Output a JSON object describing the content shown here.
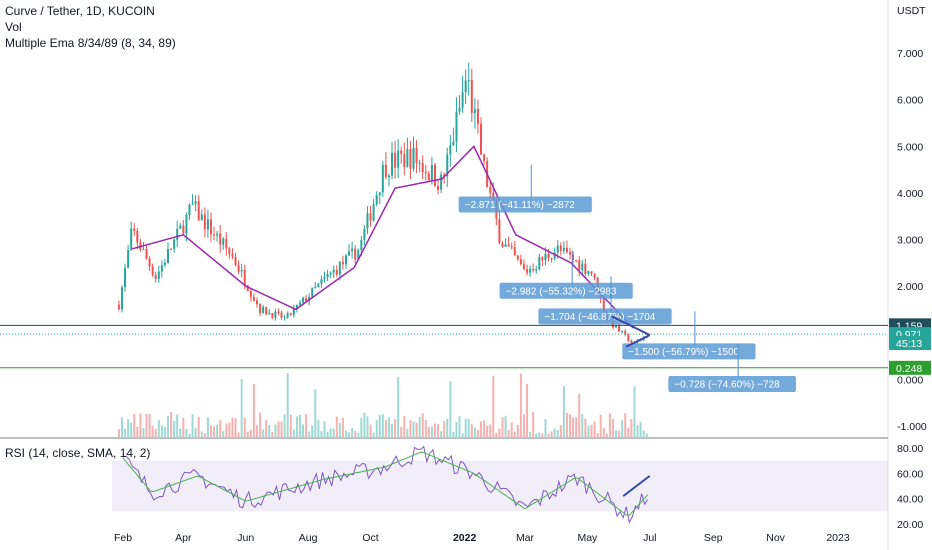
{
  "header": {
    "symbol_line": "Curve / Tether, 1D, KUCOIN",
    "vol_label": "Vol",
    "ema_label": "Multiple Ema 8/34/89 (8, 34, 89)",
    "rsi_label": "RSI (14, close, SMA, 14, 2)"
  },
  "chart_data": [
    {
      "type": "candlestick",
      "title": "Curve / Tether, 1D, KUCOIN",
      "currency_label": "USDT",
      "x_ticks": [
        "Feb",
        "Apr",
        "Jun",
        "Aug",
        "Oct",
        "2022",
        "Mar",
        "May",
        "Jul",
        "Sep",
        "Nov",
        "2023"
      ],
      "y_ticks": [
        "7.000",
        "6.000",
        "5.000",
        "4.000",
        "3.000",
        "2.000",
        "1.000",
        "0.000",
        "-1.000"
      ],
      "ylim": [
        -1.2,
        7.6
      ],
      "close_path_key_points": [
        {
          "date": "2021-01-28",
          "value": 1.6
        },
        {
          "date": "2021-02-10",
          "value": 3.2
        },
        {
          "date": "2021-03-05",
          "value": 2.2
        },
        {
          "date": "2021-04-10",
          "value": 3.7
        },
        {
          "date": "2021-05-20",
          "value": 2.6
        },
        {
          "date": "2021-06-15",
          "value": 1.5
        },
        {
          "date": "2021-07-10",
          "value": 1.3
        },
        {
          "date": "2021-08-20",
          "value": 2.2
        },
        {
          "date": "2021-09-20",
          "value": 2.8
        },
        {
          "date": "2021-10-15",
          "value": 4.6
        },
        {
          "date": "2021-11-10",
          "value": 4.8
        },
        {
          "date": "2021-12-10",
          "value": 4.2
        },
        {
          "date": "2021-12-25",
          "value": 5.6
        },
        {
          "date": "2022-01-03",
          "value": 6.5
        },
        {
          "date": "2022-01-20",
          "value": 4.5
        },
        {
          "date": "2022-02-05",
          "value": 3.0
        },
        {
          "date": "2022-03-01",
          "value": 2.3
        },
        {
          "date": "2022-04-01",
          "value": 2.8
        },
        {
          "date": "2022-05-05",
          "value": 2.3
        },
        {
          "date": "2022-05-20",
          "value": 1.3
        },
        {
          "date": "2022-06-15",
          "value": 0.75
        },
        {
          "date": "2022-06-30",
          "value": 0.971
        }
      ],
      "ema_path_key_points": [
        {
          "date": "2021-02-10",
          "value": 2.8
        },
        {
          "date": "2021-04-01",
          "value": 3.1
        },
        {
          "date": "2021-06-01",
          "value": 2.0
        },
        {
          "date": "2021-07-20",
          "value": 1.5
        },
        {
          "date": "2021-09-15",
          "value": 2.4
        },
        {
          "date": "2021-10-25",
          "value": 4.1
        },
        {
          "date": "2021-12-10",
          "value": 4.3
        },
        {
          "date": "2022-01-10",
          "value": 5.0
        },
        {
          "date": "2022-02-20",
          "value": 3.1
        },
        {
          "date": "2022-04-15",
          "value": 2.5
        },
        {
          "date": "2022-06-15",
          "value": 1.1
        }
      ],
      "price_labels": [
        {
          "text": "1.159",
          "value": 1.159,
          "color": "#1f4e5a"
        },
        {
          "text": "0.971",
          "value": 0.971,
          "color": "#26a69a"
        },
        {
          "text": "45:13",
          "value": 0.78,
          "color": "#26a69a"
        },
        {
          "text": "0.248",
          "value": 0.248,
          "color": "#2e9e2e"
        }
      ],
      "horizontal_lines": [
        {
          "value": 1.159,
          "color": "#1f4e5a"
        },
        {
          "value": 0.248,
          "color": "#2e9e2e"
        }
      ],
      "measurements": [
        {
          "text": "−2.871 (−41.11%) −2872",
          "date": "2022-01-01",
          "value": 3.75
        },
        {
          "text": "−2.982 (−55.32%) −2983",
          "date": "2022-02-10",
          "value": 1.9
        },
        {
          "text": "−1.704 (−46.87%) −1704",
          "date": "2022-03-20",
          "value": 1.35
        },
        {
          "text": "−1.500 (−56.79%) −1500",
          "date": "2022-06-10",
          "value": 0.6
        },
        {
          "text": "−0.728 (−74.60%) −728",
          "date": "2022-07-25",
          "value": -0.1
        }
      ],
      "volume_note": "volume histogram overlaid along the bottom of the price pane"
    },
    {
      "type": "line",
      "title": "RSI (14, close, SMA, 14, 2)",
      "y_ticks": [
        "80.00",
        "60.00",
        "40.00",
        "20.00"
      ],
      "ylim": [
        15,
        85
      ],
      "band": [
        30,
        70
      ],
      "rsi_key_points": [
        {
          "date": "2021-02-01",
          "value": 72
        },
        {
          "date": "2021-03-01",
          "value": 45
        },
        {
          "date": "2021-04-15",
          "value": 58
        },
        {
          "date": "2021-06-01",
          "value": 38
        },
        {
          "date": "2021-08-15",
          "value": 55
        },
        {
          "date": "2021-10-15",
          "value": 65
        },
        {
          "date": "2021-11-20",
          "value": 77
        },
        {
          "date": "2022-01-10",
          "value": 60
        },
        {
          "date": "2022-03-01",
          "value": 32
        },
        {
          "date": "2022-04-20",
          "value": 57
        },
        {
          "date": "2022-06-10",
          "value": 26
        },
        {
          "date": "2022-06-30",
          "value": 44
        }
      ]
    }
  ]
}
